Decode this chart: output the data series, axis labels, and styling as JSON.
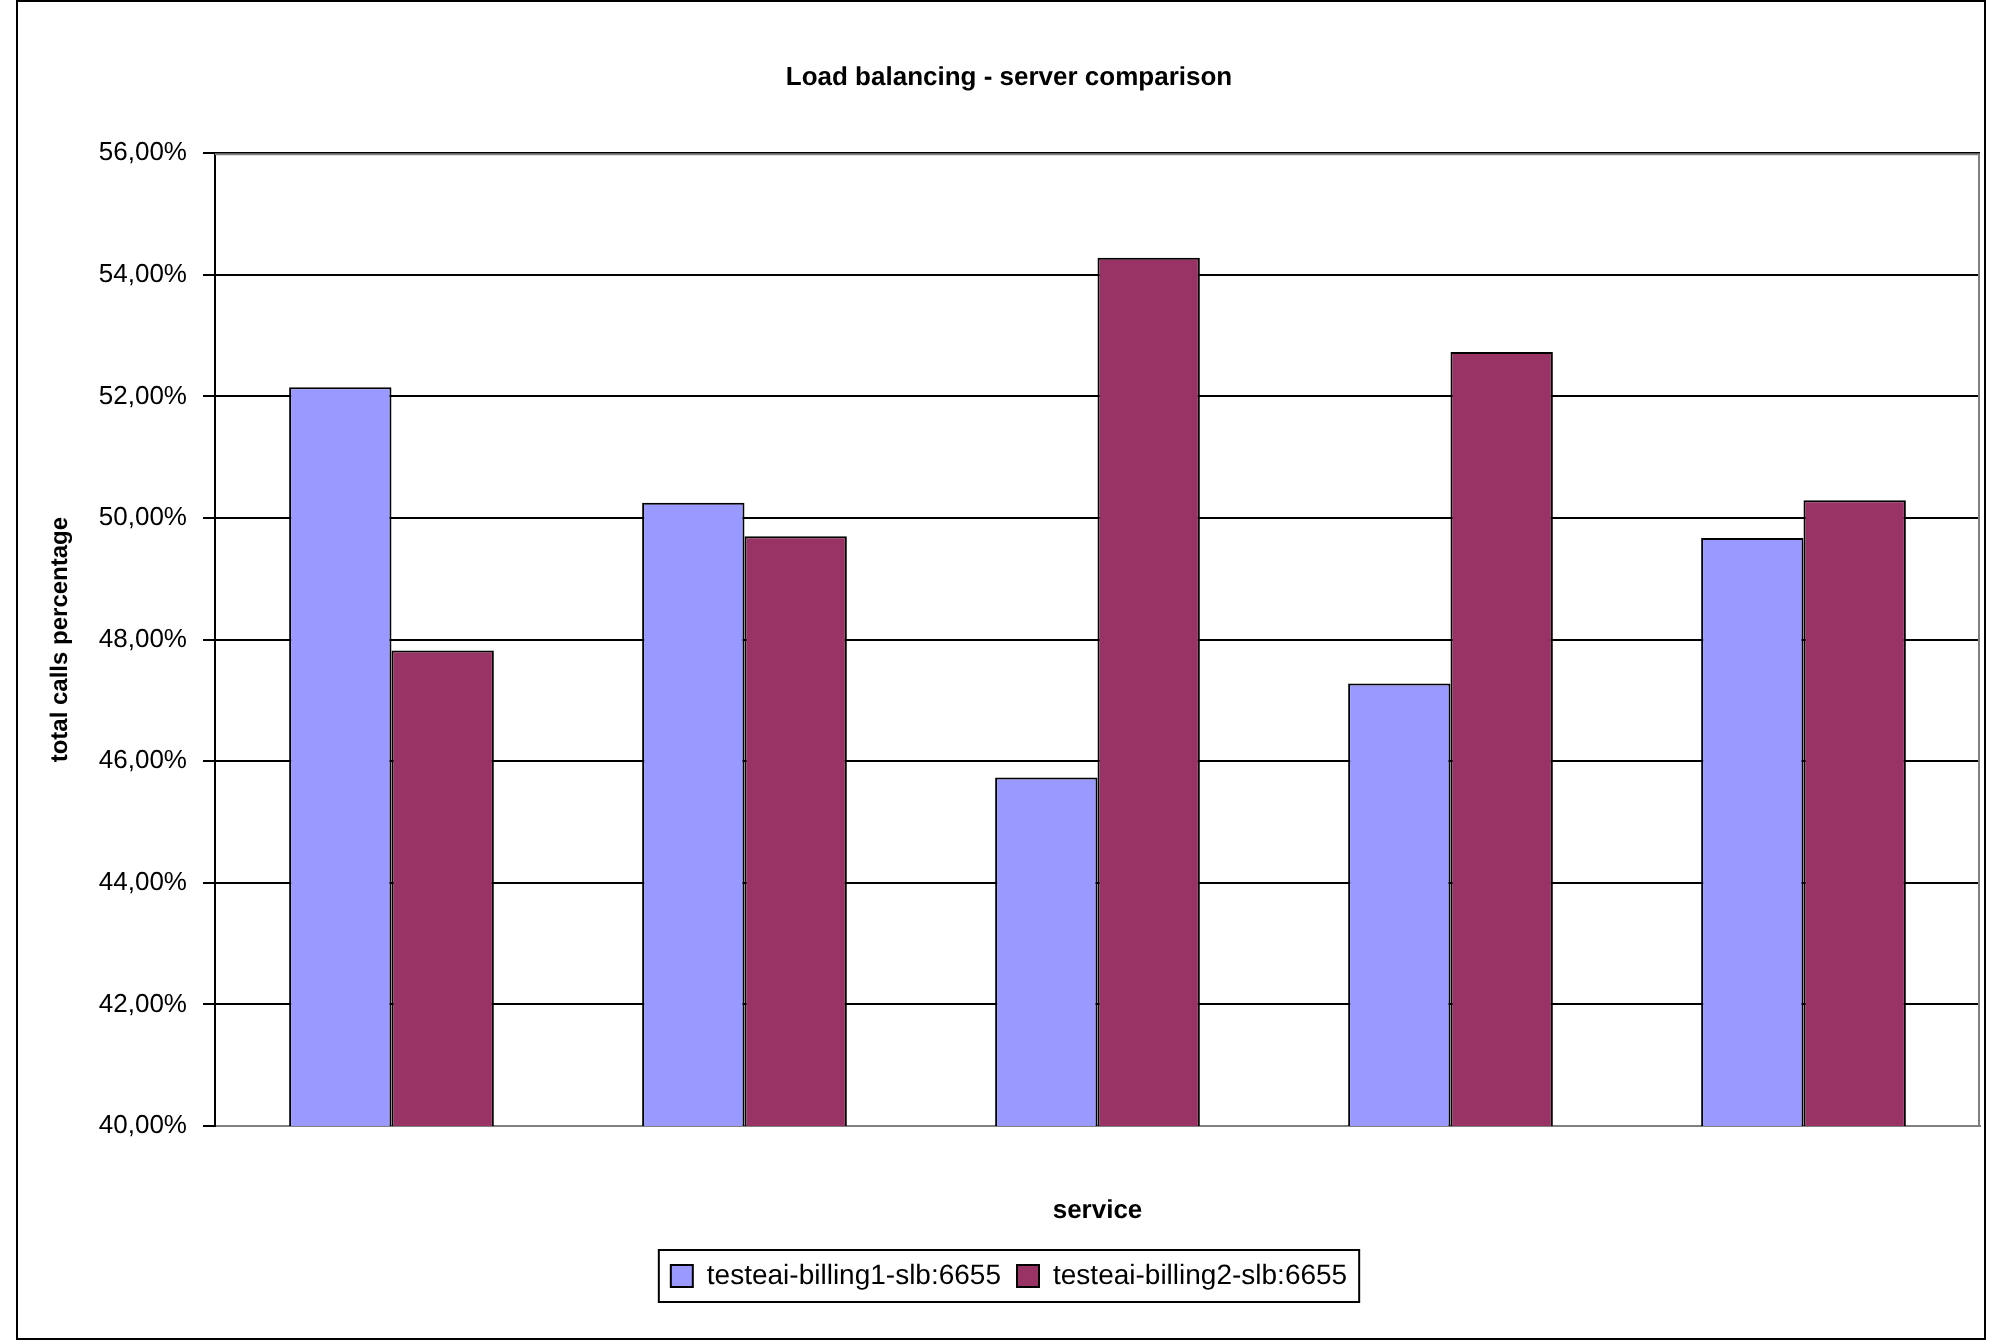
{
  "chart_data": {
    "type": "bar",
    "title": "Load balancing - server comparison",
    "xlabel": "service",
    "ylabel": "total calls percentage",
    "categories": [
      null,
      null,
      null,
      null,
      null
    ],
    "series": [
      {
        "name": "testeai-billing1-slb:6655",
        "color": "#9999ff",
        "values": [
          52.15,
          50.25,
          45.73,
          47.28,
          49.67
        ]
      },
      {
        "name": "testeai-billing2-slb:6655",
        "color": "#993366",
        "values": [
          47.82,
          49.7,
          54.28,
          52.73,
          50.29
        ]
      }
    ],
    "ylim": [
      40,
      56
    ],
    "yticks": [
      {
        "value": 40,
        "label": "40,00%"
      },
      {
        "value": 42,
        "label": "42,00%"
      },
      {
        "value": 44,
        "label": "44,00%"
      },
      {
        "value": 46,
        "label": "46,00%"
      },
      {
        "value": 48,
        "label": "48,00%"
      },
      {
        "value": 50,
        "label": "50,00%"
      },
      {
        "value": 52,
        "label": "52,00%"
      },
      {
        "value": 54,
        "label": "54,00%"
      },
      {
        "value": 56,
        "label": "56,00%"
      }
    ],
    "grid": "y",
    "legend": "bottom"
  }
}
